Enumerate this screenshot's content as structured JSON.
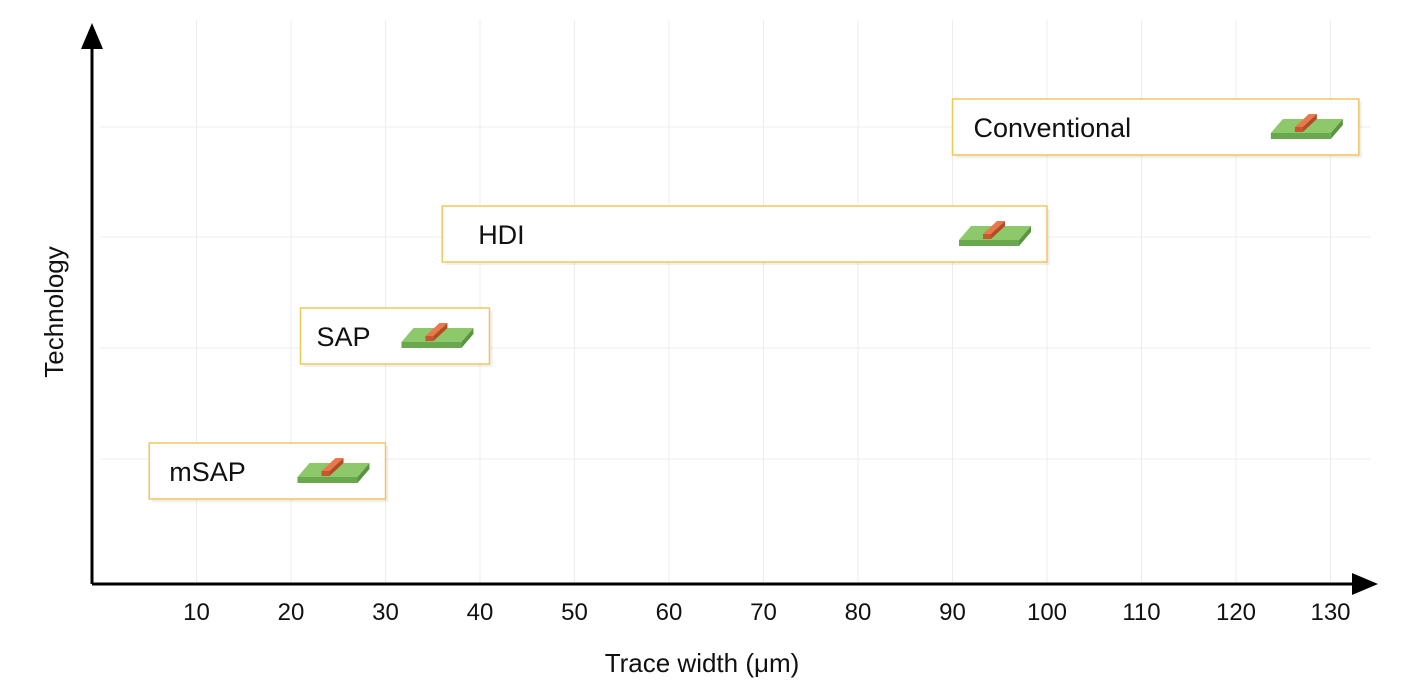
{
  "chart_data": {
    "type": "range-bar",
    "title": "",
    "xlabel": "Trace width (μm)",
    "ylabel": "Technology",
    "xlim": [
      0,
      135
    ],
    "xticks": [
      10,
      20,
      30,
      40,
      50,
      60,
      70,
      80,
      90,
      100,
      110,
      120,
      130
    ],
    "grid": true,
    "categories": [
      "mSAP",
      "SAP",
      "HDI",
      "Conventional"
    ],
    "ranges": [
      {
        "name": "mSAP",
        "min": 5,
        "max": 30
      },
      {
        "name": "SAP",
        "min": 21,
        "max": 41
      },
      {
        "name": "HDI",
        "min": 36,
        "max": 100
      },
      {
        "name": "Conventional",
        "min": 90,
        "max": 133
      }
    ]
  },
  "colors": {
    "box_border": "#f2c55a",
    "box_fill": "#ffffff",
    "substrate_top": "#8dc96a",
    "substrate_side": "#6aa84f",
    "trace_top": "#e8794f",
    "trace_side": "#c6572f",
    "grid": "#ececec",
    "axis": "#000000"
  }
}
